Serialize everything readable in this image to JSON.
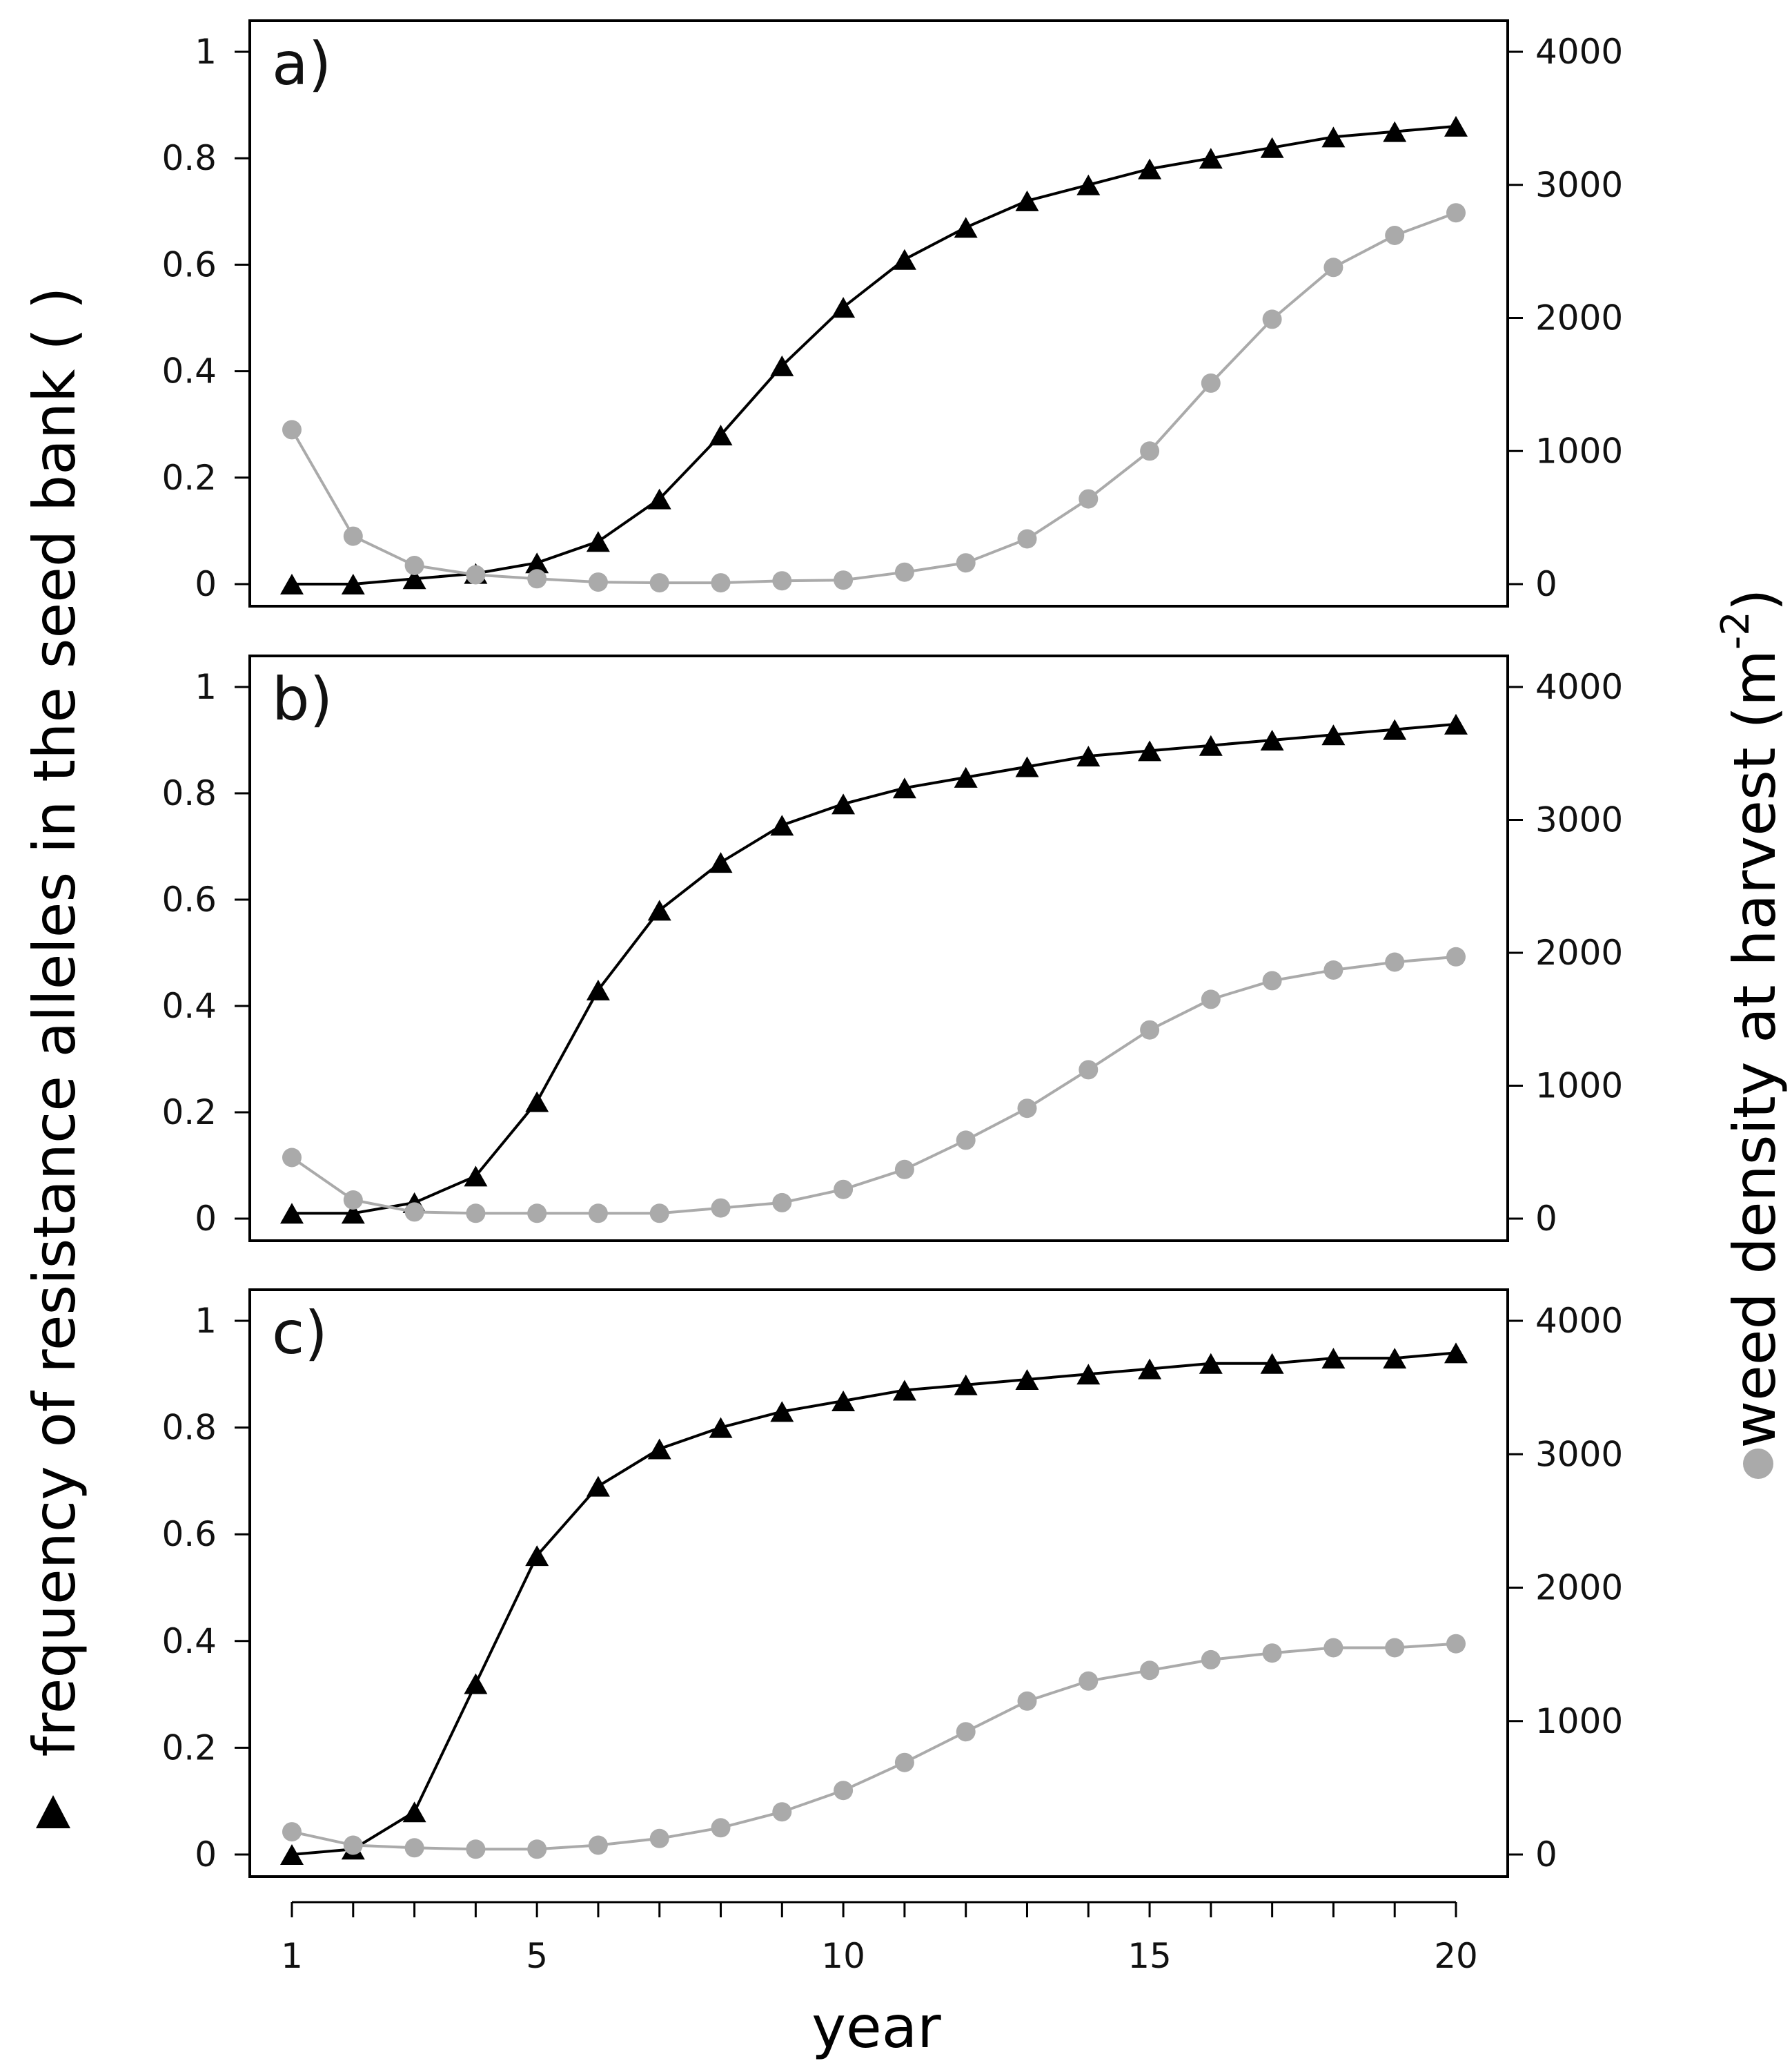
{
  "chart_data": {
    "type": "line",
    "layout": "three stacked panels sharing the x-axis, each with a left and a right y-axis",
    "xlabel": "year",
    "x_ticks": [
      1,
      5,
      10,
      15,
      20
    ],
    "xlim": [
      1,
      20
    ],
    "ylabel_left": "frequency of resistance alleles in the seed bank ( )",
    "ylabel_right_main": "weed density at harvest (m",
    "ylabel_right_exponent": "-2",
    "ylabel_right_close": ")",
    "y_left_ticks": [
      "0",
      "0.2",
      "0.4",
      "0.6",
      "0.8",
      "1"
    ],
    "y_right_ticks": [
      "0",
      "1000",
      "2000",
      "3000",
      "4000"
    ],
    "ylim_left": [
      0,
      1
    ],
    "ylim_right": [
      0,
      4000
    ],
    "legend": [
      {
        "series": "frequency of resistance alleles",
        "marker": "triangle",
        "color": "#000000",
        "placement": "left axis title"
      },
      {
        "series": "weed density at harvest",
        "marker": "circle",
        "color": "#aaaaaa",
        "placement": "right axis title"
      }
    ],
    "panels": [
      {
        "label": "a)",
        "x": [
          1,
          2,
          3,
          4,
          5,
          6,
          7,
          8,
          9,
          10,
          11,
          12,
          13,
          14,
          15,
          16,
          17,
          18,
          19,
          20
        ],
        "series": [
          {
            "name": "frequency of resistance alleles",
            "axis": "left",
            "marker": "triangle",
            "color": "#000000",
            "values": [
              0.0,
              0.0,
              0.01,
              0.02,
              0.04,
              0.08,
              0.16,
              0.28,
              0.41,
              0.52,
              0.61,
              0.67,
              0.72,
              0.75,
              0.78,
              0.8,
              0.82,
              0.84,
              0.85,
              0.86
            ]
          },
          {
            "name": "weed density at harvest",
            "axis": "right",
            "marker": "circle",
            "color": "#aaaaaa",
            "values": [
              1160,
              360,
              140,
              70,
              40,
              15,
              10,
              10,
              25,
              30,
              90,
              160,
              340,
              640,
              1000,
              1510,
              1990,
              2380,
              2620,
              2790
            ]
          }
        ]
      },
      {
        "label": "b)",
        "x": [
          1,
          2,
          3,
          4,
          5,
          6,
          7,
          8,
          9,
          10,
          11,
          12,
          13,
          14,
          15,
          16,
          17,
          18,
          19,
          20
        ],
        "series": [
          {
            "name": "frequency of resistance alleles",
            "axis": "left",
            "marker": "triangle",
            "color": "#000000",
            "values": [
              0.01,
              0.01,
              0.03,
              0.08,
              0.22,
              0.43,
              0.58,
              0.67,
              0.74,
              0.78,
              0.81,
              0.83,
              0.85,
              0.87,
              0.88,
              0.89,
              0.9,
              0.91,
              0.92,
              0.93
            ]
          },
          {
            "name": "weed density at harvest",
            "axis": "right",
            "marker": "circle",
            "color": "#aaaaaa",
            "values": [
              460,
              140,
              50,
              40,
              40,
              40,
              40,
              80,
              120,
              220,
              370,
              590,
              830,
              1120,
              1420,
              1650,
              1790,
              1870,
              1930,
              1970
            ]
          }
        ]
      },
      {
        "label": "c)",
        "x": [
          1,
          2,
          3,
          4,
          5,
          6,
          7,
          8,
          9,
          10,
          11,
          12,
          13,
          14,
          15,
          16,
          17,
          18,
          19,
          20
        ],
        "series": [
          {
            "name": "frequency of resistance alleles",
            "axis": "left",
            "marker": "triangle",
            "color": "#000000",
            "values": [
              0.0,
              0.01,
              0.08,
              0.32,
              0.56,
              0.69,
              0.76,
              0.8,
              0.83,
              0.85,
              0.87,
              0.88,
              0.89,
              0.9,
              0.91,
              0.92,
              0.92,
              0.93,
              0.93,
              0.94
            ]
          },
          {
            "name": "weed density at harvest",
            "axis": "right",
            "marker": "circle",
            "color": "#aaaaaa",
            "values": [
              170,
              70,
              50,
              40,
              40,
              70,
              120,
              200,
              320,
              480,
              690,
              920,
              1150,
              1300,
              1380,
              1460,
              1510,
              1550,
              1550,
              1580
            ]
          }
        ]
      }
    ]
  }
}
